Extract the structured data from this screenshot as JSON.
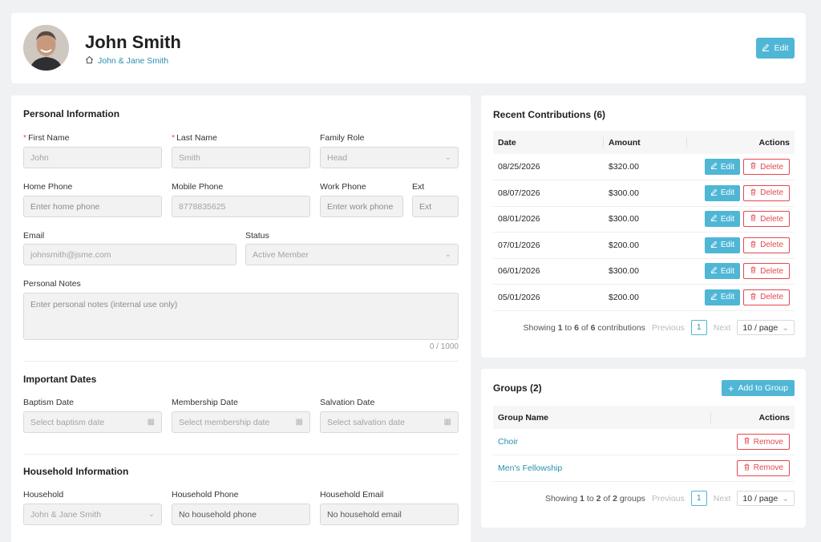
{
  "header": {
    "name": "John Smith",
    "household": "John & Jane Smith",
    "edit_label": "Edit"
  },
  "personal": {
    "title": "Personal Information",
    "first_name_label": "First Name",
    "first_name_value": "John",
    "last_name_label": "Last Name",
    "last_name_value": "Smith",
    "family_role_label": "Family Role",
    "family_role_value": "Head",
    "home_phone_label": "Home Phone",
    "home_phone_placeholder": "Enter home phone",
    "mobile_phone_label": "Mobile Phone",
    "mobile_phone_value": "8778835625",
    "work_phone_label": "Work Phone",
    "work_phone_placeholder": "Enter work phone",
    "ext_label": "Ext",
    "ext_placeholder": "Ext",
    "email_label": "Email",
    "email_value": "johnsmith@jsme.com",
    "status_label": "Status",
    "status_value": "Active Member",
    "notes_label": "Personal Notes",
    "notes_placeholder": "Enter personal notes (internal use only)",
    "notes_counter": "0 / 1000"
  },
  "dates": {
    "title": "Important Dates",
    "baptism_label": "Baptism Date",
    "baptism_placeholder": "Select baptism date",
    "membership_label": "Membership Date",
    "membership_placeholder": "Select membership date",
    "salvation_label": "Salvation Date",
    "salvation_placeholder": "Select salvation date"
  },
  "household": {
    "title": "Household Information",
    "household_label": "Household",
    "household_value": "John & Jane Smith",
    "phone_label": "Household Phone",
    "phone_value": "No household phone",
    "email_label": "Household Email",
    "email_value": "No household email"
  },
  "contributions": {
    "title": "Recent Contributions (6)",
    "col_date": "Date",
    "col_amount": "Amount",
    "col_actions": "Actions",
    "edit_label": "Edit",
    "delete_label": "Delete",
    "rows": [
      {
        "date": "08/25/2026",
        "amount": "$320.00"
      },
      {
        "date": "08/07/2026",
        "amount": "$300.00"
      },
      {
        "date": "08/01/2026",
        "amount": "$300.00"
      },
      {
        "date": "07/01/2026",
        "amount": "$200.00"
      },
      {
        "date": "06/01/2026",
        "amount": "$300.00"
      },
      {
        "date": "05/01/2026",
        "amount": "$200.00"
      }
    ],
    "showing_prefix": "Showing",
    "showing_from": "1",
    "showing_to_word": "to",
    "showing_to": "6",
    "showing_of_word": "of",
    "showing_total": "6",
    "showing_suffix": "contributions",
    "previous": "Previous",
    "page": "1",
    "next": "Next",
    "page_size": "10 / page"
  },
  "groups": {
    "title": "Groups (2)",
    "add_label": "Add to Group",
    "col_name": "Group Name",
    "col_actions": "Actions",
    "remove_label": "Remove",
    "rows": [
      {
        "name": "Choir"
      },
      {
        "name": "Men's Fellowship"
      }
    ],
    "showing_prefix": "Showing",
    "showing_from": "1",
    "showing_to_word": "to",
    "showing_to": "2",
    "showing_of_word": "of",
    "showing_total": "2",
    "showing_suffix": "groups",
    "previous": "Previous",
    "page": "1",
    "next": "Next",
    "page_size": "10 / page"
  }
}
